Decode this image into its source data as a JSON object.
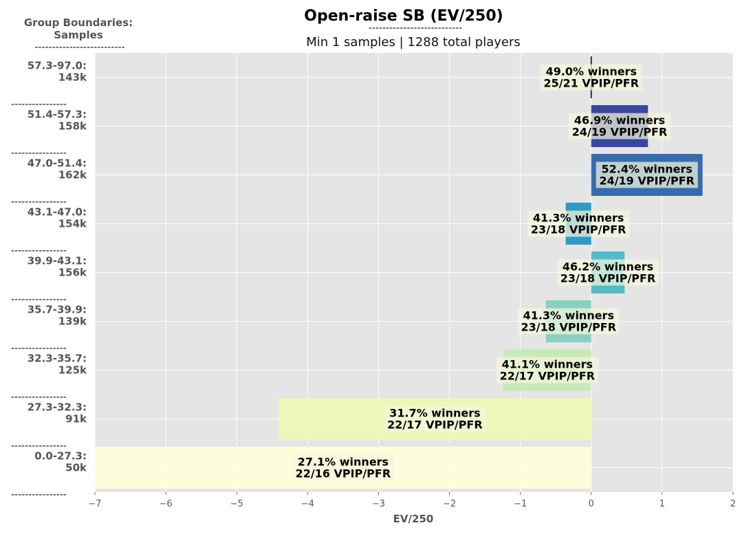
{
  "chart_data": {
    "type": "bar",
    "orientation": "horizontal",
    "title": "Open-raise SB (EV/250)",
    "title_underline": "---------------------------",
    "subtitle": "Min 1 samples | 1288 total players",
    "left_header": {
      "line1": "Group Boundaries:",
      "line2": "Samples",
      "line3": "--------------------------"
    },
    "xlabel": "EV/250",
    "xlim": [
      -7,
      2
    ],
    "xticks": [
      "−7",
      "−6",
      "−5",
      "−4",
      "−3",
      "−2",
      "−1",
      "0",
      "1",
      "2"
    ],
    "xtick_values": [
      -7,
      -6,
      -5,
      -4,
      -3,
      -2,
      -1,
      0,
      1,
      2
    ],
    "grid": true,
    "separator": "----------------",
    "categories": [
      {
        "range": "57.3-97.0:",
        "samples": "143k",
        "value": 0.0,
        "winners": "49.0% winners",
        "vpip_pfr": "25/21 VPIP/PFR",
        "color": "#081d58"
      },
      {
        "range": "51.4-57.3:",
        "samples": "158k",
        "value": 0.8,
        "winners": "46.9% winners",
        "vpip_pfr": "24/19 VPIP/PFR",
        "color": "#253494"
      },
      {
        "range": "47.0-51.4:",
        "samples": "162k",
        "value": 1.57,
        "winners": "52.4% winners",
        "vpip_pfr": "24/19 VPIP/PFR",
        "color": "#225ea8"
      },
      {
        "range": "43.1-47.0:",
        "samples": "154k",
        "value": -0.36,
        "winners": "41.3% winners",
        "vpip_pfr": "23/18 VPIP/PFR",
        "color": "#1d91c0"
      },
      {
        "range": "39.9-43.1:",
        "samples": "156k",
        "value": 0.47,
        "winners": "46.2% winners",
        "vpip_pfr": "23/18 VPIP/PFR",
        "color": "#41b6c4"
      },
      {
        "range": "35.7-39.9:",
        "samples": "139k",
        "value": -0.64,
        "winners": "41.3% winners",
        "vpip_pfr": "23/18 VPIP/PFR",
        "color": "#7fcdbb"
      },
      {
        "range": "32.3-35.7:",
        "samples": "125k",
        "value": -1.24,
        "winners": "41.1% winners",
        "vpip_pfr": "22/17 VPIP/PFR",
        "color": "#c7e9b4"
      },
      {
        "range": "27.3-32.3:",
        "samples": "91k",
        "value": -4.41,
        "winners": "31.7% winners",
        "vpip_pfr": "22/17 VPIP/PFR",
        "color": "#edf8b1"
      },
      {
        "range": "0.0-27.3:",
        "samples": "50k",
        "value": -7.0,
        "winners": "27.1% winners",
        "vpip_pfr": "22/16 VPIP/PFR",
        "color": "#ffffd9"
      }
    ]
  }
}
